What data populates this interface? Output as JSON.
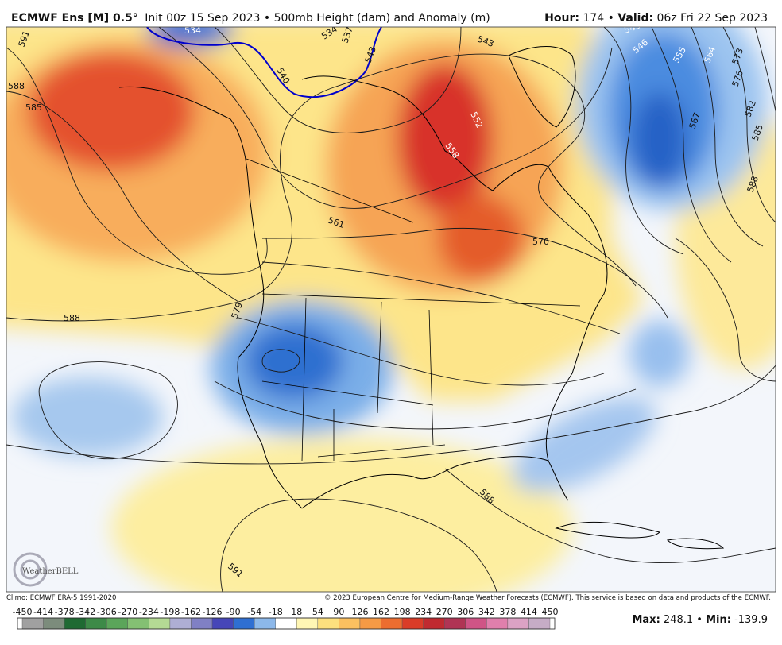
{
  "header": {
    "model": "ECMWF Ens [M] 0.5°",
    "init": "Init 00z 15 Sep 2023 • 500mb Height (dam) and Anomaly (m)",
    "hour_label": "Hour:",
    "hour": "174",
    "separator": "•",
    "valid_label": "Valid:",
    "valid": "06z Fri 22 Sep 2023"
  },
  "map": {
    "logo": "WeatherBELL",
    "contour_labels": [
      "591",
      "588",
      "585",
      "534",
      "534",
      "537",
      "543",
      "540",
      "543",
      "552",
      "558",
      "561",
      "570",
      "579",
      "588",
      "588",
      "591",
      "543",
      "546",
      "555",
      "564",
      "573",
      "576",
      "567",
      "582",
      "585",
      "588"
    ]
  },
  "footer": {
    "climo": "Climo: ECMWF ERA-5 1991-2020",
    "copyright": "© 2023 European Centre for Medium-Range Weather Forecasts (ECMWF). This service is based on data and products of the ECMWF.",
    "colorbar": {
      "ticks": [
        -450,
        -414,
        -378,
        -342,
        -306,
        -270,
        -234,
        -198,
        -162,
        -126,
        -90,
        -54,
        -18,
        18,
        54,
        90,
        126,
        162,
        198,
        234,
        270,
        306,
        342,
        378,
        414,
        450
      ],
      "colors": [
        "#a0a0a0",
        "#7c8c7c",
        "#1f6a33",
        "#3d8a48",
        "#5ba55a",
        "#84c073",
        "#b4da94",
        "#aeaed4",
        "#8080c4",
        "#4646b8",
        "#2f6fd2",
        "#8cb8ea",
        "#ffffff",
        "#fff6b4",
        "#fde07e",
        "#fbc060",
        "#f59a45",
        "#ec6d30",
        "#da3c28",
        "#c02a30",
        "#b03454",
        "#cf5486",
        "#e07fac",
        "#dca2c4",
        "#c6acc6"
      ]
    },
    "max_label": "Max:",
    "max": "248.1",
    "separator": "•",
    "min_label": "Min:",
    "min": "-139.9"
  }
}
